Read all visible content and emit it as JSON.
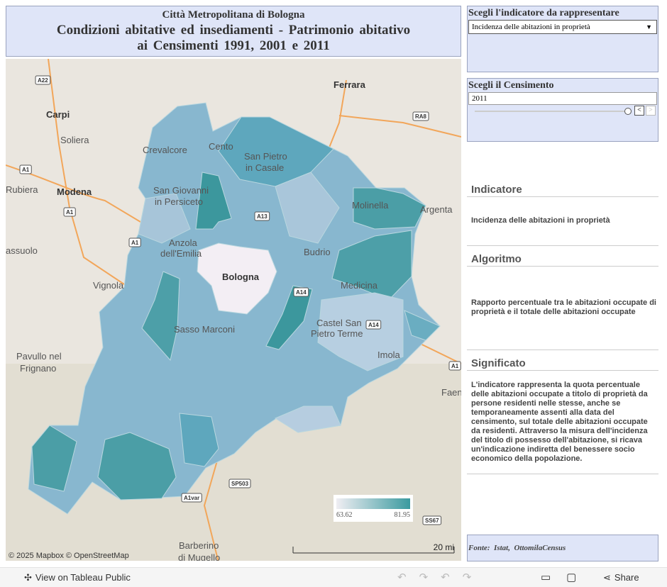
{
  "header": {
    "subtitle": "Città Metropolitana di Bologna",
    "title_line1": "Condizioni abitative ed insediamenti - Patrimonio abitativo",
    "title_line2": "ai Censimenti 1991, 2001 e 2011"
  },
  "filters": [
    {
      "label": "Scegli l'indicatore da rappresentare",
      "value": "Incidenza delle abitazioni in proprietà"
    },
    {
      "label": "Scegli il Censimento",
      "value": "2011"
    }
  ],
  "info": [
    {
      "heading": "Indicatore",
      "text": "Incidenza delle abitazioni in proprietà"
    },
    {
      "heading": "Algoritmo",
      "text": "Rapporto percentuale tra le abitazioni occupate di proprietà e il totale delle abitazioni occupate"
    },
    {
      "heading": "Significato",
      "text": "L'indicatore rappresenta la quota percentuale delle abitazioni occupate a titolo di proprietà da persone residenti nelle stesse, anche se temporaneamente assenti alla data del censimento, sul totale delle abitazioni occupate da residenti. Attraverso la misura dell'incidenza del titolo di possesso dell'abitazione, si ricava un'indicazione indiretta del benessere socio economico della popolazione."
    }
  ],
  "source": "Fonte:  Istat,  OttomilaCensus",
  "legend": {
    "min": 63.62,
    "max": 81.95
  },
  "map": {
    "labels": [
      "Ferrara",
      "Carpi",
      "Soliera",
      "Crevalcore",
      "Cento",
      "San Pietro",
      "in Casale",
      "San Giovanni",
      "in Persiceto",
      "Modena",
      "Rubiera",
      "Argenta",
      "Molinella",
      "Anzola",
      "dell'Emilia",
      "Bologna",
      "Budrio",
      "assuolo",
      "Vignola",
      "Medicina",
      "Castel San",
      "Pietro Terme",
      "Sasso Marconi",
      "Imola",
      "Pavullo nel",
      "Frignano",
      "Faen",
      "Barberino",
      "di Mugello"
    ],
    "shields": [
      "A22",
      "A1",
      "A1",
      "A1",
      "RA8",
      "A13",
      "A14",
      "A14",
      "SP503",
      "A1var",
      "SS67",
      "A1"
    ],
    "attribution": "© 2025 Mapbox  © OpenStreetMap",
    "scale": "20 mi"
  },
  "toolbar": {
    "view": "View on Tableau Public",
    "share": "Share"
  }
}
